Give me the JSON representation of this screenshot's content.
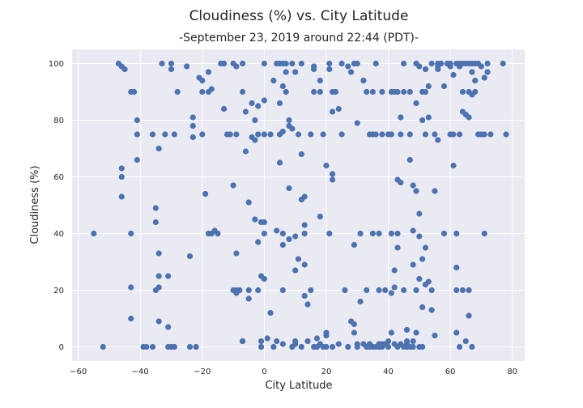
{
  "chart_data": {
    "type": "scatter",
    "title": "Cloudiness (%) vs. City Latitude",
    "subtitle": "-September 23, 2019 around 22:44 (PDT)-",
    "xlabel": "City Latitude",
    "ylabel": "Cloudiness (%)",
    "xlim": [
      -62,
      84
    ],
    "ylim": [
      -5,
      105
    ],
    "xticks": [
      -60,
      -40,
      -20,
      0,
      20,
      40,
      60,
      80
    ],
    "yticks": [
      0,
      20,
      40,
      60,
      80,
      100
    ],
    "grid": true,
    "background": "#eaeaf2",
    "grid_color": "#ffffff",
    "marker_color": "#4c72b0",
    "points": [
      [
        -55,
        40
      ],
      [
        -52,
        0
      ],
      [
        -47,
        100
      ],
      [
        -46,
        99
      ],
      [
        -45,
        98
      ],
      [
        -46,
        63
      ],
      [
        -46,
        60
      ],
      [
        -46,
        53
      ],
      [
        -43,
        90
      ],
      [
        -42,
        90
      ],
      [
        -41,
        80
      ],
      [
        -41,
        75
      ],
      [
        -41,
        66
      ],
      [
        -43,
        40
      ],
      [
        -43,
        21
      ],
      [
        -43,
        10
      ],
      [
        -39,
        0
      ],
      [
        -38,
        0
      ],
      [
        -36,
        0
      ],
      [
        -36,
        75
      ],
      [
        -35,
        49
      ],
      [
        -35,
        44
      ],
      [
        -35,
        20
      ],
      [
        -34,
        25
      ],
      [
        -34,
        21
      ],
      [
        -34,
        9
      ],
      [
        -34,
        33
      ],
      [
        -34,
        70
      ],
      [
        -33,
        100
      ],
      [
        -32,
        75
      ],
      [
        -31,
        25
      ],
      [
        -31,
        7
      ],
      [
        -31,
        0
      ],
      [
        -30,
        0
      ],
      [
        -29,
        0
      ],
      [
        -30,
        100
      ],
      [
        -30,
        98
      ],
      [
        -29,
        75
      ],
      [
        -28,
        90
      ],
      [
        -25,
        99
      ],
      [
        -23,
        81
      ],
      [
        -23,
        78
      ],
      [
        -23,
        74
      ],
      [
        -24,
        32
      ],
      [
        -24,
        0
      ],
      [
        -22,
        0
      ],
      [
        -21,
        95
      ],
      [
        -20,
        94
      ],
      [
        -20,
        75
      ],
      [
        -20,
        90
      ],
      [
        -19,
        54
      ],
      [
        -18,
        97
      ],
      [
        -18,
        90
      ],
      [
        -17,
        91
      ],
      [
        -18,
        40
      ],
      [
        -17,
        40
      ],
      [
        -16,
        41
      ],
      [
        -15,
        40
      ],
      [
        -14,
        100
      ],
      [
        -13,
        100
      ],
      [
        -13,
        84
      ],
      [
        -12,
        75
      ],
      [
        -11,
        75
      ],
      [
        -10,
        100
      ],
      [
        -10,
        57
      ],
      [
        -9,
        75
      ],
      [
        -9,
        99
      ],
      [
        -9,
        33
      ],
      [
        -10,
        20
      ],
      [
        -9,
        19
      ],
      [
        -8,
        20
      ],
      [
        -7,
        100
      ],
      [
        -7,
        90
      ],
      [
        -7,
        2
      ],
      [
        -6,
        69
      ],
      [
        -6,
        83
      ],
      [
        -5,
        51
      ],
      [
        -5,
        20
      ],
      [
        -5,
        17
      ],
      [
        -4,
        86
      ],
      [
        -4,
        74
      ],
      [
        -3,
        80
      ],
      [
        -3,
        73
      ],
      [
        -3,
        45
      ],
      [
        -2,
        37
      ],
      [
        -2,
        85
      ],
      [
        -2,
        75
      ],
      [
        -1,
        44
      ],
      [
        -1,
        25
      ],
      [
        -1,
        2
      ],
      [
        0,
        100
      ],
      [
        0,
        87
      ],
      [
        0,
        75
      ],
      [
        0,
        40
      ],
      [
        0,
        44
      ],
      [
        0,
        24
      ],
      [
        1,
        3
      ],
      [
        2,
        12
      ],
      [
        2,
        75
      ],
      [
        3,
        94
      ],
      [
        4,
        100
      ],
      [
        4,
        41
      ],
      [
        4,
        2
      ],
      [
        5,
        100
      ],
      [
        5,
        86
      ],
      [
        5,
        75
      ],
      [
        5,
        65
      ],
      [
        6,
        100
      ],
      [
        6,
        92
      ],
      [
        6,
        76
      ],
      [
        6,
        40
      ],
      [
        6,
        36
      ],
      [
        6,
        20
      ],
      [
        7,
        100
      ],
      [
        7,
        97
      ],
      [
        7,
        90
      ],
      [
        8,
        80
      ],
      [
        8,
        78
      ],
      [
        8,
        56
      ],
      [
        8,
        38
      ],
      [
        9,
        100
      ],
      [
        9,
        77
      ],
      [
        9,
        0
      ],
      [
        10,
        97
      ],
      [
        10,
        39
      ],
      [
        10,
        27
      ],
      [
        10,
        2
      ],
      [
        11,
        31
      ],
      [
        11,
        75
      ],
      [
        12,
        100
      ],
      [
        12,
        68
      ],
      [
        12,
        52
      ],
      [
        13,
        53
      ],
      [
        13,
        43
      ],
      [
        13,
        40
      ],
      [
        13,
        29
      ],
      [
        13,
        18
      ],
      [
        14,
        15
      ],
      [
        15,
        75
      ],
      [
        15,
        20
      ],
      [
        16,
        99
      ],
      [
        16,
        98
      ],
      [
        16,
        90
      ],
      [
        17,
        3
      ],
      [
        17,
        0
      ],
      [
        18,
        46
      ],
      [
        18,
        94
      ],
      [
        18,
        90
      ],
      [
        19,
        75
      ],
      [
        20,
        0
      ],
      [
        20,
        64
      ],
      [
        20,
        5
      ],
      [
        20,
        4
      ],
      [
        21,
        100
      ],
      [
        21,
        98
      ],
      [
        21,
        40
      ],
      [
        22,
        90
      ],
      [
        22,
        83
      ],
      [
        22,
        59
      ],
      [
        22,
        61
      ],
      [
        23,
        90
      ],
      [
        24,
        84
      ],
      [
        24,
        1
      ],
      [
        25,
        100
      ],
      [
        25,
        75
      ],
      [
        26,
        20
      ],
      [
        27,
        0
      ],
      [
        27,
        99
      ],
      [
        28,
        97
      ],
      [
        28,
        9
      ],
      [
        29,
        100
      ],
      [
        29,
        8
      ],
      [
        29,
        36
      ],
      [
        29,
        5
      ],
      [
        30,
        100
      ],
      [
        30,
        79
      ],
      [
        30,
        0
      ],
      [
        31,
        40
      ],
      [
        31,
        16
      ],
      [
        32,
        94
      ],
      [
        33,
        90
      ],
      [
        33,
        20
      ],
      [
        34,
        75
      ],
      [
        34,
        1
      ],
      [
        35,
        75
      ],
      [
        35,
        90
      ],
      [
        35,
        40
      ],
      [
        35,
        0
      ],
      [
        36,
        100
      ],
      [
        36,
        75
      ],
      [
        37,
        40
      ],
      [
        37,
        0
      ],
      [
        37,
        20
      ],
      [
        38,
        75
      ],
      [
        38,
        90
      ],
      [
        38,
        1
      ],
      [
        39,
        20
      ],
      [
        40,
        2
      ],
      [
        40,
        0
      ],
      [
        40,
        75
      ],
      [
        41,
        90
      ],
      [
        41,
        75
      ],
      [
        41,
        40
      ],
      [
        41,
        19
      ],
      [
        41,
        5
      ],
      [
        42,
        90
      ],
      [
        42,
        27
      ],
      [
        42,
        21
      ],
      [
        42,
        1
      ],
      [
        43,
        90
      ],
      [
        43,
        59
      ],
      [
        43,
        40
      ],
      [
        43,
        35
      ],
      [
        43,
        0
      ],
      [
        44,
        81
      ],
      [
        44,
        75
      ],
      [
        44,
        58
      ],
      [
        45,
        100
      ],
      [
        45,
        90
      ],
      [
        45,
        20
      ],
      [
        46,
        1
      ],
      [
        46,
        6
      ],
      [
        46,
        0
      ],
      [
        47,
        90
      ],
      [
        47,
        75
      ],
      [
        47,
        66
      ],
      [
        48,
        57
      ],
      [
        48,
        41
      ],
      [
        48,
        29
      ],
      [
        48,
        2
      ],
      [
        49,
        100
      ],
      [
        49,
        86
      ],
      [
        49,
        55
      ],
      [
        49,
        20
      ],
      [
        49,
        5
      ],
      [
        50,
        99
      ],
      [
        50,
        47
      ],
      [
        50,
        39
      ],
      [
        50,
        24
      ],
      [
        50,
        0
      ],
      [
        51,
        90
      ],
      [
        51,
        80
      ],
      [
        51,
        31
      ],
      [
        51,
        14
      ],
      [
        51,
        0
      ],
      [
        52,
        98
      ],
      [
        52,
        90
      ],
      [
        52,
        75
      ],
      [
        52,
        35
      ],
      [
        52,
        22
      ],
      [
        53,
        92
      ],
      [
        53,
        81
      ],
      [
        53,
        23
      ],
      [
        54,
        100
      ],
      [
        54,
        13
      ],
      [
        54,
        20
      ],
      [
        55,
        75
      ],
      [
        55,
        55
      ],
      [
        55,
        4
      ],
      [
        56,
        100
      ],
      [
        56,
        99
      ],
      [
        56,
        98
      ],
      [
        56,
        73
      ],
      [
        57,
        100
      ],
      [
        58,
        92
      ],
      [
        58,
        40
      ],
      [
        59,
        100
      ],
      [
        60,
        100
      ],
      [
        60,
        99
      ],
      [
        60,
        75
      ],
      [
        61,
        96
      ],
      [
        61,
        75
      ],
      [
        61,
        64
      ],
      [
        62,
        100
      ],
      [
        62,
        40
      ],
      [
        62,
        28
      ],
      [
        62,
        20
      ],
      [
        62,
        5
      ],
      [
        63,
        100
      ],
      [
        63,
        99
      ],
      [
        63,
        75
      ],
      [
        63,
        0
      ],
      [
        64,
        100
      ],
      [
        64,
        90
      ],
      [
        64,
        83
      ],
      [
        64,
        20
      ],
      [
        65,
        100
      ],
      [
        65,
        82
      ],
      [
        65,
        2
      ],
      [
        66,
        100
      ],
      [
        66,
        90
      ],
      [
        66,
        81
      ],
      [
        66,
        20
      ],
      [
        66,
        11
      ],
      [
        67,
        100
      ],
      [
        67,
        97
      ],
      [
        67,
        89
      ],
      [
        67,
        0
      ],
      [
        68,
        100
      ],
      [
        68,
        94
      ],
      [
        68,
        90
      ],
      [
        69,
        100
      ],
      [
        69,
        75
      ],
      [
        70,
        99
      ],
      [
        70,
        75
      ],
      [
        71,
        95
      ],
      [
        71,
        75
      ],
      [
        71,
        40
      ],
      [
        72,
        100
      ],
      [
        72,
        97
      ],
      [
        73,
        75
      ],
      [
        77,
        100
      ],
      [
        78,
        75
      ],
      [
        -9,
        20
      ],
      [
        -8,
        20
      ],
      [
        -2,
        20
      ],
      [
        34,
        0
      ],
      [
        36,
        0
      ],
      [
        38,
        0
      ],
      [
        39,
        1
      ],
      [
        44,
        1
      ],
      [
        45,
        0
      ],
      [
        47,
        0
      ],
      [
        48,
        0
      ],
      [
        46,
        2
      ],
      [
        30,
        1
      ],
      [
        32,
        1
      ],
      [
        33,
        0
      ],
      [
        37,
        1
      ],
      [
        22,
        0
      ],
      [
        19,
        0
      ],
      [
        18,
        1
      ],
      [
        16,
        0
      ],
      [
        14,
        2
      ],
      [
        12,
        0
      ],
      [
        10,
        1
      ],
      [
        6,
        1
      ],
      [
        3,
        0
      ],
      [
        -1,
        0
      ],
      [
        -7,
        2
      ]
    ]
  }
}
